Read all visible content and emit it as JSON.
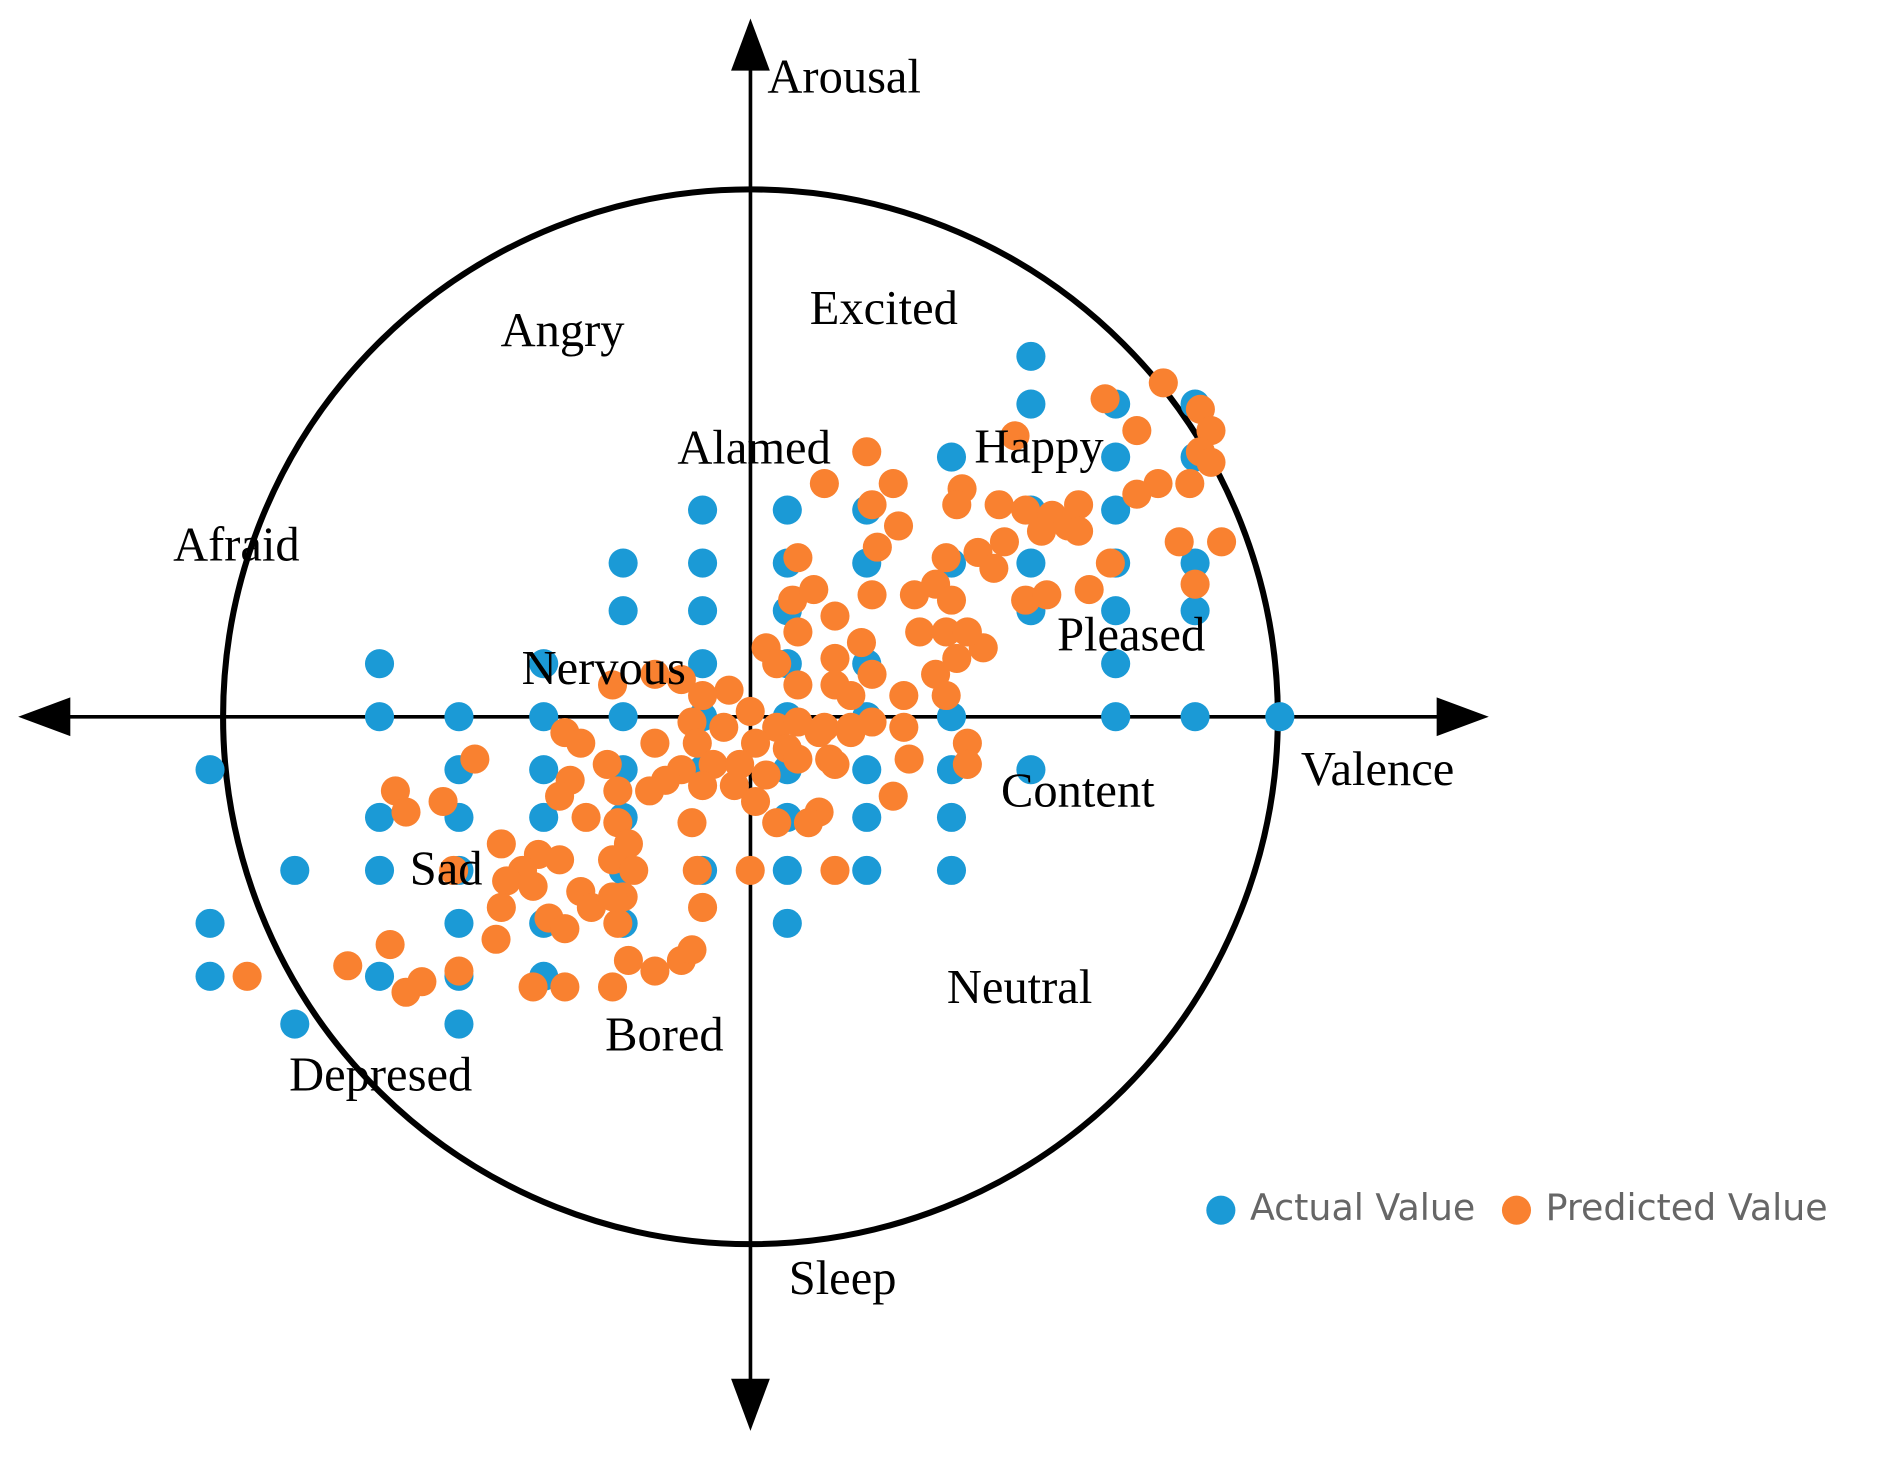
{
  "chart_data": {
    "type": "scatter",
    "xlabel": "Valence",
    "ylabel": "Arousal",
    "annotations": [
      "Excited",
      "Angry",
      "Alamed",
      "Happy",
      "Afraid",
      "Nervous",
      "Pleased",
      "Content",
      "Sad",
      "Neutral",
      "Bored",
      "Depresed",
      "Sleep"
    ],
    "xlim": [
      -1.38,
      1.39
    ],
    "ylim": [
      -1.35,
      1.32
    ],
    "legend": "lower right",
    "series": [
      {
        "name": "Actual Value",
        "color": "#1b9ad6",
        "x": [
          0.53,
          0.53,
          0.69,
          0.84,
          0.38,
          0.69,
          0.84,
          -0.09,
          0.07,
          0.22,
          0.53,
          0.69,
          -0.24,
          -0.09,
          0.07,
          0.22,
          0.38,
          0.53,
          0.69,
          0.84,
          -0.24,
          -0.09,
          0.07,
          0.53,
          0.69,
          0.84,
          -0.7,
          -0.39,
          -0.09,
          0.07,
          0.22,
          0.69,
          -0.7,
          -0.55,
          -0.39,
          -0.24,
          -0.09,
          0.07,
          0.22,
          0.38,
          0.69,
          0.84,
          1.0,
          -1.02,
          -0.55,
          -0.39,
          -0.24,
          -0.09,
          0.07,
          0.22,
          0.38,
          0.53,
          -0.7,
          -0.55,
          -0.39,
          -0.24,
          0.07,
          0.22,
          0.38,
          -0.86,
          -0.7,
          -0.55,
          -0.24,
          -0.09,
          0.07,
          0.22,
          0.38,
          -1.02,
          -0.55,
          -0.39,
          -0.24,
          0.07,
          -1.02,
          -0.7,
          -0.55,
          -0.39,
          -0.86,
          -0.55
        ],
        "values": [
          0.68,
          0.59,
          0.59,
          0.59,
          0.49,
          0.49,
          0.49,
          0.39,
          0.39,
          0.39,
          0.39,
          0.39,
          0.29,
          0.29,
          0.29,
          0.29,
          0.29,
          0.29,
          0.29,
          0.29,
          0.2,
          0.2,
          0.2,
          0.2,
          0.2,
          0.2,
          0.1,
          0.1,
          0.1,
          0.1,
          0.1,
          0.1,
          0,
          0,
          0,
          0,
          0,
          0,
          0,
          0,
          0,
          0,
          0,
          -0.1,
          -0.1,
          -0.1,
          -0.1,
          -0.1,
          -0.1,
          -0.1,
          -0.1,
          -0.1,
          -0.19,
          -0.19,
          -0.19,
          -0.19,
          -0.19,
          -0.19,
          -0.19,
          -0.29,
          -0.29,
          -0.29,
          -0.29,
          -0.29,
          -0.29,
          -0.29,
          -0.29,
          -0.39,
          -0.39,
          -0.39,
          -0.39,
          -0.39,
          -0.49,
          -0.49,
          -0.49,
          -0.49,
          -0.58,
          -0.58
        ]
      },
      {
        "name": "Predicted Value",
        "color": "#f98130",
        "x": [
          0.78,
          0.67,
          0.85,
          0.87,
          0.73,
          0.5,
          0.22,
          0.85,
          0.87,
          0.83,
          0.77,
          0.73,
          0.27,
          0.14,
          0.4,
          0.39,
          0.47,
          0.52,
          0.57,
          0.62,
          0.6,
          0.55,
          0.62,
          0.23,
          0.28,
          0.24,
          0.48,
          0.43,
          0.46,
          0.37,
          0.09,
          0.81,
          0.89,
          0.68,
          0.08,
          0.12,
          0.16,
          0.23,
          0.31,
          0.35,
          0.38,
          0.52,
          0.56,
          0.64,
          0.84,
          0.03,
          0.09,
          0.05,
          0.16,
          0.21,
          0.32,
          0.37,
          0.44,
          0.41,
          0.35,
          0.39,
          0.23,
          0.16,
          0.29,
          0.37,
          0.19,
          0.09,
          -0.04,
          -0.09,
          -0.13,
          -0.18,
          -0.26,
          0.0,
          -0.11,
          -0.05,
          0.05,
          0.09,
          0.14,
          0.19,
          0.23,
          0.29,
          0.01,
          0.07,
          0.13,
          0.15,
          0.19,
          -0.18,
          -0.1,
          -0.35,
          -0.32,
          -0.07,
          -0.13,
          -0.16,
          -0.19,
          -0.25,
          -0.27,
          -0.52,
          -0.34,
          -0.03,
          0.03,
          -0.09,
          -0.02,
          0.01,
          0.09,
          0.16,
          0.41,
          0.41,
          0.3,
          0.27,
          0.05,
          0.13,
          0.11,
          -0.11,
          -0.31,
          -0.36,
          -0.67,
          -0.65,
          -0.58,
          -0.47,
          -0.4,
          -0.36,
          -0.43,
          -0.46,
          -0.41,
          -0.25,
          -0.23,
          -0.26,
          -0.24,
          -0.22,
          -0.32,
          -0.3,
          -0.38,
          -0.35,
          -0.47,
          -0.48,
          -0.56,
          -0.1,
          0.0,
          0.16,
          -0.09,
          -0.25,
          -0.26,
          -0.23,
          -0.18,
          -0.13,
          -0.11,
          -0.41,
          -0.35,
          -0.26,
          -0.55,
          -0.62,
          -0.65,
          -0.68,
          -0.76,
          -0.95
        ],
        "values": [
          0.63,
          0.6,
          0.58,
          0.54,
          0.54,
          0.53,
          0.5,
          0.5,
          0.48,
          0.44,
          0.44,
          0.42,
          0.44,
          0.44,
          0.43,
          0.4,
          0.4,
          0.39,
          0.38,
          0.4,
          0.36,
          0.35,
          0.35,
          0.4,
          0.36,
          0.32,
          0.33,
          0.31,
          0.28,
          0.3,
          0.3,
          0.33,
          0.33,
          0.29,
          0.22,
          0.24,
          0.19,
          0.23,
          0.23,
          0.25,
          0.22,
          0.22,
          0.23,
          0.24,
          0.25,
          0.13,
          0.16,
          0.1,
          0.11,
          0.14,
          0.16,
          0.16,
          0.13,
          0.16,
          0.08,
          0.11,
          0.08,
          0.06,
          0.04,
          0.04,
          0.04,
          0.06,
          0.05,
          0.04,
          0.07,
          0.08,
          0.06,
          0.01,
          -0.01,
          -0.02,
          -0.02,
          -0.01,
          -0.02,
          -0.02,
          -0.01,
          -0.02,
          -0.05,
          -0.06,
          -0.03,
          -0.08,
          -0.03,
          -0.05,
          -0.05,
          -0.03,
          -0.05,
          -0.09,
          -0.1,
          -0.12,
          -0.14,
          -0.14,
          -0.09,
          -0.08,
          -0.12,
          -0.13,
          -0.11,
          -0.13,
          -0.09,
          -0.16,
          -0.08,
          -0.09,
          -0.05,
          -0.09,
          -0.08,
          -0.15,
          -0.2,
          -0.18,
          -0.2,
          -0.2,
          -0.19,
          -0.15,
          -0.14,
          -0.18,
          -0.16,
          -0.24,
          -0.26,
          -0.27,
          -0.29,
          -0.31,
          -0.32,
          -0.2,
          -0.24,
          -0.27,
          -0.34,
          -0.29,
          -0.33,
          -0.36,
          -0.38,
          -0.4,
          -0.36,
          -0.42,
          -0.29,
          -0.29,
          -0.29,
          -0.29,
          -0.36,
          -0.39,
          -0.34,
          -0.46,
          -0.48,
          -0.46,
          -0.44,
          -0.51,
          -0.51,
          -0.51,
          -0.48,
          -0.5,
          -0.52,
          -0.43,
          -0.47,
          -0.49
        ]
      }
    ]
  }
}
